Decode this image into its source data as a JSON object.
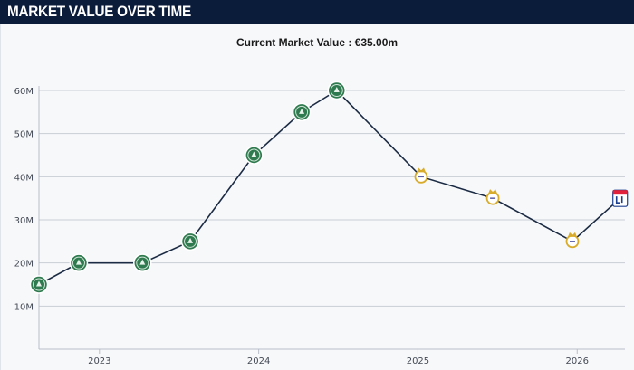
{
  "header": {
    "title": "MARKET VALUE OVER TIME"
  },
  "chart_data": {
    "type": "line",
    "title": "MARKET VALUE OVER TIME",
    "subtitle": "Current Market Value : €35.00m",
    "xlabel": "",
    "ylabel": "",
    "xlim": [
      2022.62,
      2026.3
    ],
    "ylim": [
      0,
      60
    ],
    "y_ticks": [
      {
        "value": 10,
        "label": "10M"
      },
      {
        "value": 20,
        "label": "20M"
      },
      {
        "value": 30,
        "label": "30M"
      },
      {
        "value": 40,
        "label": "40M"
      },
      {
        "value": 50,
        "label": "50M"
      },
      {
        "value": 60,
        "label": "60M"
      }
    ],
    "x_ticks": [
      {
        "value": 2023,
        "label": "2023"
      },
      {
        "value": 2024,
        "label": "2024"
      },
      {
        "value": 2025,
        "label": "2025"
      },
      {
        "value": 2026,
        "label": "2026"
      }
    ],
    "grid": true,
    "points": [
      {
        "x": 2022.62,
        "y": 15,
        "club": "Palmeiras"
      },
      {
        "x": 2022.87,
        "y": 20,
        "club": "Palmeiras"
      },
      {
        "x": 2023.27,
        "y": 20,
        "club": "Palmeiras"
      },
      {
        "x": 2023.57,
        "y": 25,
        "club": "Palmeiras"
      },
      {
        "x": 2023.97,
        "y": 45,
        "club": "Palmeiras"
      },
      {
        "x": 2024.27,
        "y": 55,
        "club": "Palmeiras"
      },
      {
        "x": 2024.49,
        "y": 60,
        "club": "Palmeiras"
      },
      {
        "x": 2025.02,
        "y": 40,
        "club": "Real Madrid"
      },
      {
        "x": 2025.47,
        "y": 35,
        "club": "Real Madrid"
      },
      {
        "x": 2025.97,
        "y": 25,
        "club": "Real Madrid"
      },
      {
        "x": 2026.27,
        "y": 35,
        "club": "Olympique Lyonnais"
      }
    ],
    "colors": {
      "line": "#1c2b44",
      "grid": "#c9ced6",
      "palmeiras": "#2f7a4f",
      "real_madrid": "#d8ab2a",
      "lyon": "#1b3f8f",
      "lyon_accent": "#e2213b"
    }
  }
}
